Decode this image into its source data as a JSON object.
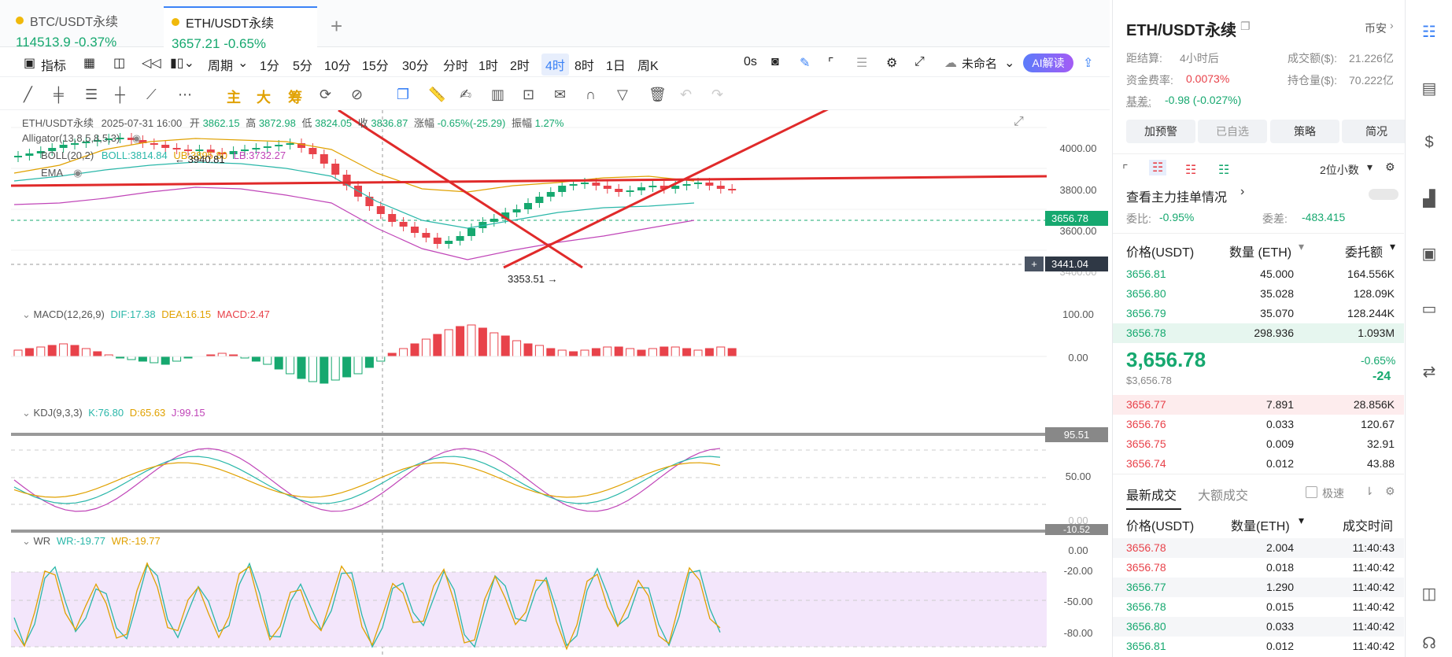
{
  "tabs": [
    {
      "name": "BTC/USDT永续",
      "price": "114513.9",
      "change": "-0.37%"
    },
    {
      "name": "ETH/USDT永续",
      "price": "3657.21",
      "change": "-0.65%"
    }
  ],
  "toolbar": {
    "indicator": "指标",
    "period": "周期",
    "intervals": [
      "1分",
      "5分",
      "10分",
      "15分",
      "30分",
      "分时",
      "1时",
      "2时",
      "4时",
      "8时",
      "1日",
      "周K"
    ],
    "selected_interval": "4时",
    "countdown": "0s",
    "unnamed": "未命名",
    "ai": "AI解读"
  },
  "toolbar2": {
    "zhu": "主",
    "da": "大",
    "chou": "筹"
  },
  "legend": {
    "symbol": "ETH/USDT永续",
    "time": "2025-07-31 16:00",
    "open_label": "开",
    "open": "3862.15",
    "high_label": "高",
    "high": "3872.98",
    "low_label": "低",
    "low": "3824.05",
    "close_label": "收",
    "close": "3836.87",
    "chg_label": "涨幅",
    "chg": "-0.65%(-25.29)",
    "amp_label": "振幅",
    "amp": "1.27%",
    "alligator": "Alligator(13,8,5,8,5,3)",
    "boll": "BOLL(20,2)",
    "boll_val": "BOLL:3814.84",
    "ub": "UB:3895.80",
    "lb": "LB:3732.27",
    "ema": "EMA",
    "high_mark": "3940.81",
    "low_mark": "3353.51"
  },
  "axis": {
    "main": [
      "4000.00",
      "3800.00",
      "3600.00",
      "3400.00"
    ],
    "last_price": "3656.78",
    "cross_price": "3441.04",
    "macd": [
      "100.00",
      "0.00"
    ],
    "kdj": [
      "95.51",
      "50.00",
      "0.00",
      "-10.52"
    ],
    "wr": [
      "0.00",
      "-20.00",
      "-50.00",
      "-80.00"
    ]
  },
  "macd": {
    "label": "MACD(12,26,9)",
    "dif": "DIF:17.38",
    "dea": "DEA:16.15",
    "macd": "MACD:2.47"
  },
  "kdj": {
    "label": "KDJ(9,3,3)",
    "k": "K:76.80",
    "d": "D:65.63",
    "j": "J:99.15"
  },
  "wr": {
    "label": "WR",
    "wr1": "WR:-19.77",
    "wr2": "WR:-19.77"
  },
  "panel": {
    "title": "ETH/USDT永续",
    "exchange": "币安",
    "settle_label": "距结算:",
    "settle": "4小时后",
    "vol_label": "成交额($):",
    "vol": "21.226亿",
    "fund_label": "资金费率:",
    "fund": "0.0073%",
    "oi_label": "持仓量($):",
    "oi": "70.222亿",
    "basis_label": "基差:",
    "basis": "-0.98 (-0.027%)",
    "buttons": [
      "加预警",
      "已自选",
      "策略",
      "简况"
    ],
    "decimals": "2位小数",
    "main_orders": "查看主力挂单情况",
    "ratio_label": "委比:",
    "ratio": "-0.95%",
    "diff_label": "委差:",
    "diff": "-483.415",
    "ob_headers": [
      "价格(USDT)",
      "数量 (ETH)",
      "委托额"
    ],
    "asks": [
      {
        "price": "3656.81",
        "qty": "45.000",
        "amt": "164.556K"
      },
      {
        "price": "3656.80",
        "qty": "35.028",
        "amt": "128.09K"
      },
      {
        "price": "3656.79",
        "qty": "35.070",
        "amt": "128.244K"
      },
      {
        "price": "3656.78",
        "qty": "298.936",
        "amt": "1.093M"
      }
    ],
    "last": "3,656.78",
    "last_usd": "$3,656.78",
    "last_pct": "-0.65%",
    "last_chg": "-24",
    "bids": [
      {
        "price": "3656.77",
        "qty": "7.891",
        "amt": "28.856K"
      },
      {
        "price": "3656.76",
        "qty": "0.033",
        "amt": "120.67"
      },
      {
        "price": "3656.75",
        "qty": "0.009",
        "amt": "32.91"
      },
      {
        "price": "3656.74",
        "qty": "0.012",
        "amt": "43.88"
      }
    ],
    "trade_tabs": [
      "最新成交",
      "大额成交"
    ],
    "fast": "极速",
    "trade_headers": [
      "价格(USDT)",
      "数量(ETH)",
      "成交时间"
    ],
    "trades": [
      {
        "price": "3656.78",
        "qty": "2.004",
        "time": "11:40:43",
        "side": "sell"
      },
      {
        "price": "3656.78",
        "qty": "0.018",
        "time": "11:40:42",
        "side": "sell"
      },
      {
        "price": "3656.77",
        "qty": "1.290",
        "time": "11:40:42",
        "side": "buy"
      },
      {
        "price": "3656.78",
        "qty": "0.015",
        "time": "11:40:42",
        "side": "buy"
      },
      {
        "price": "3656.80",
        "qty": "0.033",
        "time": "11:40:42",
        "side": "buy"
      },
      {
        "price": "3656.81",
        "qty": "0.012",
        "time": "11:40:42",
        "side": "buy"
      }
    ]
  },
  "colors": {
    "up": "#16a86f",
    "down": "#e8424a",
    "accent": "#3b82f6"
  }
}
